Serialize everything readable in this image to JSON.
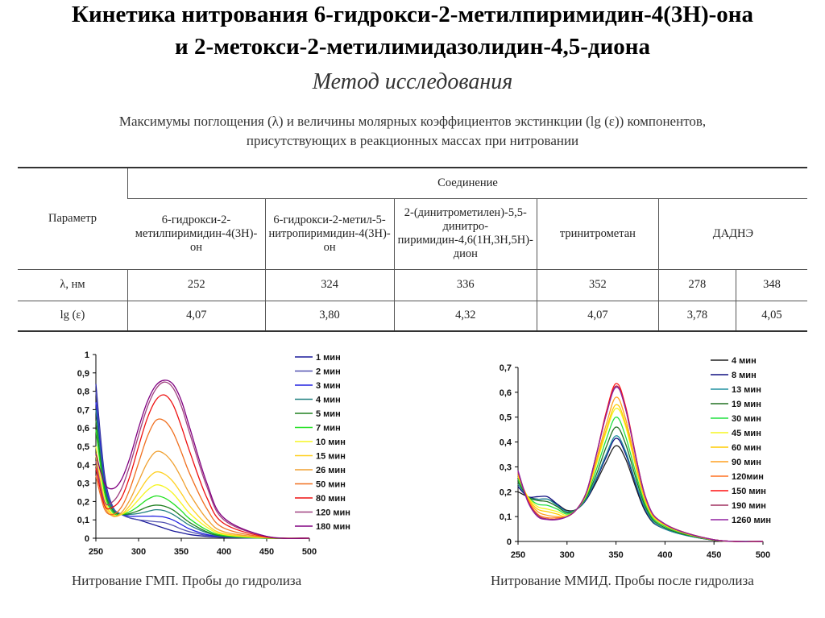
{
  "title": {
    "line1": "Кинетика нитрования 6-гидрокси-2-метилпиримидин-4(3Н)-она",
    "line2": "и 2-метокси-2-метилимидазолидин-4,5-диона",
    "line3": "Метод исследования"
  },
  "subtitle": {
    "line1": "Максимумы поглощения (λ) и величины молярных коэффициентов экстинкции (lg (ε)) компонентов,",
    "line2": "присутствующих в реакционных массах при нитровании"
  },
  "table": {
    "param_header": "Параметр",
    "group_header": "Соединение",
    "compounds": [
      "6-гидрокси-2-метилпиримидин-4(3Н)-он",
      "6-гидрокси-2-метил-5-нитропиримидин-4(3Н)-он",
      "2-(динитрометилен)-5,5-динитро-пиримидин-4,6(1Н,3Н,5Н)-дион",
      "тринитрометан",
      "ДАДНЭ"
    ],
    "rows": [
      {
        "label": "λ, нм",
        "values": [
          "252",
          "324",
          "336",
          "352",
          "278",
          "348"
        ]
      },
      {
        "label": "lg (ε)",
        "values": [
          "4,07",
          "3,80",
          "4,32",
          "4,07",
          "3,78",
          "4,05"
        ]
      }
    ]
  },
  "chart_data": [
    {
      "type": "line",
      "caption": "Нитрование ГМП. Пробы до гидролиза",
      "xlim": [
        250,
        500
      ],
      "ylim": [
        0,
        1
      ],
      "xticks": [
        "250",
        "300",
        "350",
        "400",
        "450",
        "500"
      ],
      "yticks": [
        "0",
        "0,1",
        "0,2",
        "0,3",
        "0,4",
        "0,5",
        "0,6",
        "0,7",
        "0,8",
        "0,9",
        "1"
      ],
      "legend": "right",
      "x": [
        250,
        260,
        270,
        280,
        290,
        300,
        310,
        320,
        330,
        340,
        350,
        360,
        380,
        400,
        450,
        500
      ],
      "series": [
        {
          "name": "1 мин",
          "color": "#1a1a9a",
          "values": [
            0.84,
            0.35,
            0.17,
            0.13,
            0.11,
            0.1,
            0.085,
            0.07,
            0.055,
            0.04,
            0.03,
            0.02,
            0.01,
            0.005,
            0,
            0
          ]
        },
        {
          "name": "2 мин",
          "color": "#5050b0",
          "values": [
            0.8,
            0.33,
            0.17,
            0.13,
            0.11,
            0.1,
            0.095,
            0.09,
            0.085,
            0.07,
            0.05,
            0.035,
            0.015,
            0.005,
            0,
            0
          ]
        },
        {
          "name": "3 мин",
          "color": "#2020e0",
          "values": [
            0.74,
            0.31,
            0.16,
            0.13,
            0.12,
            0.12,
            0.12,
            0.12,
            0.115,
            0.1,
            0.075,
            0.05,
            0.02,
            0.008,
            0,
            0
          ]
        },
        {
          "name": "4 мин",
          "color": "#208080",
          "values": [
            0.7,
            0.29,
            0.16,
            0.13,
            0.13,
            0.135,
            0.145,
            0.155,
            0.15,
            0.13,
            0.1,
            0.07,
            0.03,
            0.01,
            0,
            0
          ]
        },
        {
          "name": "5 мин",
          "color": "#208020",
          "values": [
            0.64,
            0.27,
            0.15,
            0.13,
            0.135,
            0.15,
            0.17,
            0.18,
            0.175,
            0.155,
            0.12,
            0.085,
            0.035,
            0.012,
            0,
            0
          ]
        },
        {
          "name": "7 мин",
          "color": "#20e020",
          "values": [
            0.59,
            0.25,
            0.14,
            0.13,
            0.145,
            0.175,
            0.21,
            0.23,
            0.22,
            0.19,
            0.15,
            0.105,
            0.045,
            0.015,
            0,
            0
          ]
        },
        {
          "name": "10 мин",
          "color": "#f5f520",
          "values": [
            0.5,
            0.22,
            0.13,
            0.13,
            0.16,
            0.21,
            0.26,
            0.29,
            0.28,
            0.245,
            0.19,
            0.135,
            0.06,
            0.02,
            0.002,
            0
          ]
        },
        {
          "name": "15 мин",
          "color": "#ffd020",
          "values": [
            0.45,
            0.2,
            0.125,
            0.13,
            0.18,
            0.25,
            0.32,
            0.36,
            0.35,
            0.31,
            0.245,
            0.175,
            0.075,
            0.025,
            0.003,
            0
          ]
        },
        {
          "name": "26 мин",
          "color": "#f0a030",
          "values": [
            0.4,
            0.18,
            0.12,
            0.14,
            0.21,
            0.31,
            0.41,
            0.47,
            0.46,
            0.41,
            0.33,
            0.24,
            0.105,
            0.035,
            0.004,
            0
          ]
        },
        {
          "name": "50 мин",
          "color": "#f07020",
          "values": [
            0.34,
            0.16,
            0.13,
            0.17,
            0.27,
            0.41,
            0.55,
            0.64,
            0.64,
            0.58,
            0.47,
            0.35,
            0.16,
            0.055,
            0.005,
            0
          ]
        },
        {
          "name": "80 мин",
          "color": "#ee1010",
          "values": [
            0.38,
            0.18,
            0.17,
            0.22,
            0.34,
            0.5,
            0.65,
            0.75,
            0.78,
            0.73,
            0.61,
            0.47,
            0.22,
            0.08,
            0.007,
            0
          ]
        },
        {
          "name": "120 мин",
          "color": "#a04080",
          "values": [
            0.42,
            0.2,
            0.2,
            0.27,
            0.4,
            0.56,
            0.71,
            0.81,
            0.85,
            0.82,
            0.72,
            0.57,
            0.28,
            0.1,
            0.01,
            0
          ]
        },
        {
          "name": "180 мин",
          "color": "#800080",
          "values": [
            0.46,
            0.3,
            0.27,
            0.32,
            0.44,
            0.6,
            0.74,
            0.83,
            0.86,
            0.84,
            0.75,
            0.6,
            0.3,
            0.11,
            0.01,
            0
          ]
        }
      ]
    },
    {
      "type": "line",
      "caption": "Нитрование ММИД. Пробы после гидролиза",
      "xlim": [
        250,
        500
      ],
      "ylim": [
        0,
        0.7
      ],
      "xticks": [
        "250",
        "300",
        "350",
        "400",
        "450",
        "500"
      ],
      "yticks": [
        "0",
        "0,1",
        "0,2",
        "0,3",
        "0,4",
        "0,5",
        "0,6",
        "0,7"
      ],
      "legend": "right",
      "x": [
        250,
        260,
        270,
        280,
        290,
        300,
        310,
        320,
        330,
        340,
        350,
        360,
        380,
        400,
        450,
        500
      ],
      "series": [
        {
          "name": "4 мин",
          "color": "#202020",
          "values": [
            0.2,
            0.18,
            0.17,
            0.17,
            0.15,
            0.125,
            0.13,
            0.17,
            0.24,
            0.32,
            0.385,
            0.33,
            0.12,
            0.05,
            0.005,
            0
          ]
        },
        {
          "name": "8 мин",
          "color": "#101080",
          "values": [
            0.22,
            0.18,
            0.18,
            0.18,
            0.15,
            0.12,
            0.13,
            0.17,
            0.25,
            0.34,
            0.415,
            0.35,
            0.125,
            0.05,
            0.005,
            0
          ]
        },
        {
          "name": "13 мин",
          "color": "#2090a0",
          "values": [
            0.23,
            0.18,
            0.17,
            0.17,
            0.145,
            0.12,
            0.13,
            0.175,
            0.255,
            0.35,
            0.425,
            0.36,
            0.13,
            0.05,
            0.005,
            0
          ]
        },
        {
          "name": "19 мин",
          "color": "#207020",
          "values": [
            0.24,
            0.18,
            0.165,
            0.16,
            0.14,
            0.115,
            0.13,
            0.18,
            0.27,
            0.38,
            0.46,
            0.39,
            0.14,
            0.055,
            0.005,
            0
          ]
        },
        {
          "name": "30 мин",
          "color": "#20e040",
          "values": [
            0.25,
            0.18,
            0.15,
            0.145,
            0.13,
            0.11,
            0.13,
            0.185,
            0.29,
            0.41,
            0.5,
            0.42,
            0.15,
            0.06,
            0.006,
            0
          ]
        },
        {
          "name": "45 мин",
          "color": "#f5f520",
          "values": [
            0.26,
            0.18,
            0.14,
            0.13,
            0.12,
            0.105,
            0.13,
            0.19,
            0.31,
            0.44,
            0.535,
            0.46,
            0.16,
            0.065,
            0.006,
            0
          ]
        },
        {
          "name": "60 мин",
          "color": "#ffcc00",
          "values": [
            0.265,
            0.175,
            0.13,
            0.12,
            0.11,
            0.1,
            0.13,
            0.195,
            0.32,
            0.45,
            0.55,
            0.47,
            0.165,
            0.065,
            0.006,
            0
          ]
        },
        {
          "name": "90 мин",
          "color": "#ffa020",
          "values": [
            0.27,
            0.17,
            0.12,
            0.105,
            0.1,
            0.1,
            0.13,
            0.2,
            0.33,
            0.47,
            0.58,
            0.49,
            0.17,
            0.07,
            0.007,
            0
          ]
        },
        {
          "name": "120мин",
          "color": "#ff7020",
          "values": [
            0.275,
            0.165,
            0.11,
            0.095,
            0.095,
            0.1,
            0.13,
            0.2,
            0.35,
            0.51,
            0.625,
            0.53,
            0.18,
            0.07,
            0.007,
            0
          ]
        },
        {
          "name": "150 мин",
          "color": "#ff1010",
          "values": [
            0.28,
            0.165,
            0.105,
            0.09,
            0.09,
            0.1,
            0.13,
            0.2,
            0.35,
            0.52,
            0.635,
            0.54,
            0.18,
            0.07,
            0.007,
            0
          ]
        },
        {
          "name": "190 мин",
          "color": "#a03060",
          "values": [
            0.28,
            0.16,
            0.105,
            0.09,
            0.09,
            0.1,
            0.13,
            0.2,
            0.35,
            0.51,
            0.625,
            0.53,
            0.18,
            0.07,
            0.007,
            0
          ]
        },
        {
          "name": "1260 мин",
          "color": "#9020a0",
          "values": [
            0.285,
            0.16,
            0.1,
            0.088,
            0.088,
            0.1,
            0.13,
            0.2,
            0.35,
            0.51,
            0.62,
            0.53,
            0.18,
            0.07,
            0.007,
            0
          ]
        }
      ]
    }
  ]
}
